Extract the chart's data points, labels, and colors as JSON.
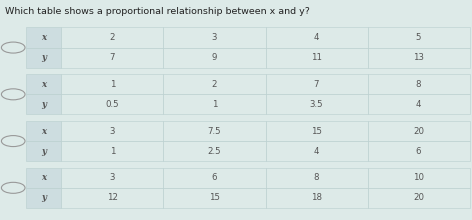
{
  "title": "Which table shows a proportional relationship between x and y?",
  "background_color": "#ddeae8",
  "tables": [
    {
      "row_x": [
        "x",
        "2",
        "3",
        "4",
        "5"
      ],
      "row_y": [
        "y",
        "7",
        "9",
        "11",
        "13"
      ]
    },
    {
      "row_x": [
        "x",
        "1",
        "2",
        "7",
        "8"
      ],
      "row_y": [
        "y",
        "0.5",
        "1",
        "3.5",
        "4"
      ]
    },
    {
      "row_x": [
        "x",
        "3",
        "7.5",
        "15",
        "20"
      ],
      "row_y": [
        "y",
        "1",
        "2.5",
        "4",
        "6"
      ]
    },
    {
      "row_x": [
        "x",
        "3",
        "6",
        "8",
        "10"
      ],
      "row_y": [
        "y",
        "12",
        "15",
        "18",
        "20"
      ]
    }
  ],
  "cell_bg": "#ddeae8",
  "cell_bg_alt": "#cddde0",
  "cell_border": "#b8cece",
  "text_color": "#555555",
  "title_fontsize": 6.8,
  "cell_fontsize": 6.2,
  "radio_color": "#999999",
  "label_col_bg": "#cddde0"
}
